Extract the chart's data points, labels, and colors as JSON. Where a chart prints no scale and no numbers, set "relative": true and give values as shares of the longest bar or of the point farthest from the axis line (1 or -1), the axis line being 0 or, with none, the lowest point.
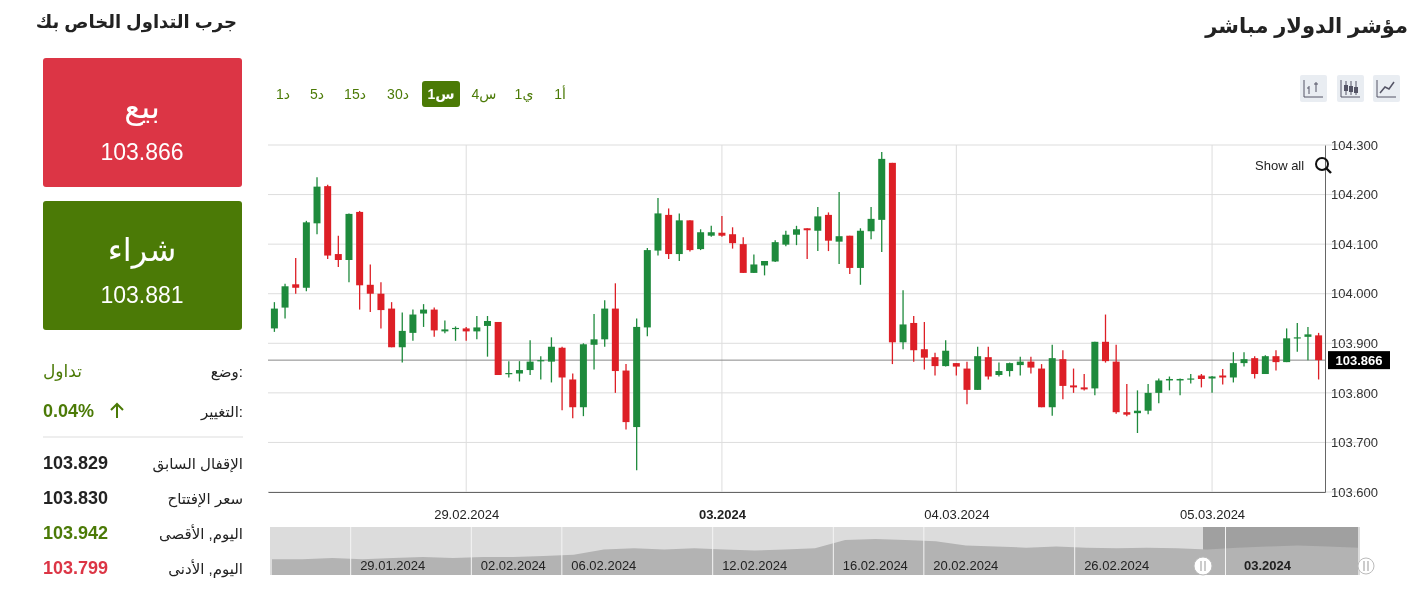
{
  "chart_data": [
    {
      "type": "candlestick",
      "title": "مؤشر الدولار مباشر",
      "categories": [
        null,
        null,
        null,
        null,
        null,
        null,
        null,
        null,
        null,
        null,
        null,
        null,
        null,
        null,
        null,
        null,
        null,
        null,
        "29.02.2024",
        null,
        null,
        null,
        null,
        null,
        null,
        null,
        null,
        null,
        null,
        null,
        null,
        null,
        null,
        null,
        null,
        null,
        null,
        null,
        null,
        null,
        null,
        null,
        "03.2024",
        null,
        null,
        null,
        null,
        null,
        null,
        null,
        null,
        null,
        null,
        null,
        null,
        null,
        null,
        null,
        null,
        null,
        null,
        null,
        null,
        null,
        "04.03.2024",
        null,
        null,
        null,
        null,
        null,
        null,
        null,
        null,
        null,
        null,
        null,
        null,
        null,
        null,
        null,
        null,
        null,
        null,
        null,
        null,
        null,
        null,
        null,
        "05.03.2024",
        null,
        null,
        null,
        null,
        null,
        null,
        null,
        null,
        null,
        null
      ],
      "ohlc": [
        [
          103.93,
          103.983,
          103.923,
          103.97
        ],
        [
          103.972,
          104.02,
          103.95,
          104.015
        ],
        [
          104.019,
          104.072,
          104.0,
          104.012
        ],
        [
          104.012,
          104.147,
          104.005,
          104.144
        ],
        [
          104.142,
          104.235,
          104.12,
          104.216
        ],
        [
          104.217,
          104.22,
          104.07,
          104.077
        ],
        [
          104.08,
          104.117,
          104.054,
          104.068
        ],
        [
          104.068,
          104.162,
          104.023,
          104.161
        ],
        [
          104.165,
          104.167,
          103.968,
          104.017
        ],
        [
          104.018,
          104.059,
          103.963,
          104.0
        ],
        [
          104.0,
          104.023,
          103.93,
          103.967
        ],
        [
          103.97,
          103.983,
          103.892,
          103.892
        ],
        [
          103.892,
          103.962,
          103.861,
          103.925
        ],
        [
          103.921,
          103.968,
          103.905,
          103.958
        ],
        [
          103.96,
          103.979,
          103.933,
          103.968
        ],
        [
          103.968,
          103.972,
          103.913,
          103.926
        ],
        [
          103.924,
          103.946,
          103.92,
          103.928
        ],
        [
          103.93,
          103.934,
          103.905,
          103.931
        ],
        [
          103.93,
          103.933,
          103.905,
          103.924
        ],
        [
          103.924,
          103.955,
          103.908,
          103.932
        ],
        [
          103.935,
          103.955,
          103.873,
          103.945
        ],
        [
          103.943,
          103.943,
          103.836,
          103.836
        ],
        [
          103.84,
          103.864,
          103.831,
          103.84
        ],
        [
          103.839,
          103.864,
          103.823,
          103.846
        ],
        [
          103.846,
          103.906,
          103.836,
          103.863
        ],
        [
          103.864,
          103.874,
          103.827,
          103.866
        ],
        [
          103.863,
          103.912,
          103.821,
          103.893
        ],
        [
          103.891,
          103.893,
          103.765,
          103.831
        ],
        [
          103.827,
          103.839,
          103.749,
          103.771
        ],
        [
          103.771,
          103.9,
          103.753,
          103.898
        ],
        [
          103.897,
          103.959,
          103.847,
          103.908
        ],
        [
          103.908,
          103.987,
          103.893,
          103.97
        ],
        [
          103.97,
          104.021,
          103.8,
          103.844
        ],
        [
          103.845,
          103.858,
          103.726,
          103.741
        ],
        [
          103.731,
          103.95,
          103.644,
          103.933
        ],
        [
          103.932,
          104.092,
          103.914,
          104.088
        ],
        [
          104.087,
          104.193,
          104.077,
          104.162
        ],
        [
          104.159,
          104.172,
          104.07,
          104.08
        ],
        [
          104.08,
          104.162,
          104.066,
          104.148
        ],
        [
          104.148,
          104.148,
          104.085,
          104.088
        ],
        [
          104.09,
          104.13,
          104.088,
          104.124
        ],
        [
          104.117,
          104.137,
          104.115,
          104.124
        ],
        [
          104.123,
          104.157,
          104.115,
          104.117
        ],
        [
          104.12,
          104.134,
          104.091,
          104.102
        ],
        [
          104.1,
          104.114,
          104.042,
          104.042
        ],
        [
          104.042,
          104.079,
          104.042,
          104.059
        ],
        [
          104.057,
          104.066,
          104.037,
          104.066
        ],
        [
          104.065,
          104.108,
          104.064,
          104.104
        ],
        [
          104.099,
          104.127,
          104.096,
          104.119
        ],
        [
          104.119,
          104.137,
          104.098,
          104.13
        ],
        [
          104.132,
          104.132,
          104.07,
          104.128
        ],
        [
          104.127,
          104.175,
          104.086,
          104.156
        ],
        [
          104.159,
          104.164,
          104.086,
          104.107
        ],
        [
          104.105,
          104.205,
          104.06,
          104.116
        ],
        [
          104.117,
          104.117,
          104.04,
          104.052
        ],
        [
          104.052,
          104.132,
          104.018,
          104.127
        ],
        [
          104.126,
          104.175,
          104.11,
          104.151
        ],
        [
          104.149,
          104.286,
          104.084,
          104.272
        ],
        [
          104.264,
          104.264,
          103.858,
          103.902
        ],
        [
          103.902,
          104.007,
          103.888,
          103.938
        ],
        [
          103.941,
          103.955,
          103.863,
          103.886
        ],
        [
          103.888,
          103.943,
          103.847,
          103.871
        ],
        [
          103.872,
          103.881,
          103.835,
          103.854
        ],
        [
          103.854,
          103.906,
          103.853,
          103.885
        ],
        [
          103.86,
          103.86,
          103.835,
          103.853
        ],
        [
          103.849,
          103.863,
          103.777,
          103.806
        ],
        [
          103.806,
          103.893,
          103.806,
          103.874
        ],
        [
          103.872,
          103.893,
          103.827,
          103.833
        ],
        [
          103.836,
          103.861,
          103.833,
          103.844
        ],
        [
          103.844,
          103.861,
          103.833,
          103.86
        ],
        [
          103.856,
          103.873,
          103.835,
          103.863
        ],
        [
          103.863,
          103.873,
          103.839,
          103.851
        ],
        [
          103.849,
          103.858,
          103.771,
          103.771
        ],
        [
          103.771,
          103.897,
          103.754,
          103.87
        ],
        [
          103.868,
          103.886,
          103.787,
          103.814
        ],
        [
          103.815,
          103.849,
          103.8,
          103.811
        ],
        [
          103.811,
          103.838,
          103.805,
          103.807
        ],
        [
          103.809,
          103.903,
          103.795,
          103.903
        ],
        [
          103.903,
          103.958,
          103.861,
          103.864
        ],
        [
          103.863,
          103.897,
          103.758,
          103.761
        ],
        [
          103.761,
          103.818,
          103.753,
          103.756
        ],
        [
          103.759,
          103.805,
          103.719,
          103.764
        ],
        [
          103.764,
          103.818,
          103.757,
          103.8
        ],
        [
          103.8,
          103.829,
          103.779,
          103.825
        ],
        [
          103.825,
          103.833,
          103.805,
          103.828
        ],
        [
          103.825,
          103.829,
          103.795,
          103.828
        ],
        [
          103.828,
          103.838,
          103.819,
          103.829
        ],
        [
          103.835,
          103.838,
          103.811,
          103.828
        ],
        [
          103.829,
          103.834,
          103.8,
          103.833
        ],
        [
          103.835,
          103.848,
          103.817,
          103.831
        ],
        [
          103.831,
          103.882,
          103.821,
          103.86
        ],
        [
          103.86,
          103.882,
          103.853,
          103.868
        ],
        [
          103.87,
          103.874,
          103.829,
          103.838
        ],
        [
          103.838,
          103.876,
          103.838,
          103.874
        ],
        [
          103.874,
          103.886,
          103.845,
          103.862
        ],
        [
          103.862,
          103.93,
          103.862,
          103.91
        ],
        [
          103.911,
          103.941,
          103.883,
          103.912
        ],
        [
          103.913,
          103.933,
          103.866,
          103.918
        ],
        [
          103.916,
          103.921,
          103.827,
          103.866
        ]
      ],
      "colors": [
        "#1e8a3c",
        "#1e8a3c",
        "#dd1f26",
        "#1e8a3c",
        "#1e8a3c",
        "#dd1f26",
        "#dd1f26",
        "#1e8a3c",
        "#dd1f26",
        "#dd1f26",
        "#dd1f26",
        "#dd1f26",
        "#1e8a3c",
        "#1e8a3c",
        "#1e8a3c",
        "#dd1f26",
        "#1e8a3c",
        "#1e8a3c",
        "#dd1f26",
        "#1e8a3c",
        "#1e8a3c",
        "#dd1f26",
        "#1e8a3c",
        "#1e8a3c",
        "#1e8a3c",
        "#1e8a3c",
        "#1e8a3c",
        "#dd1f26",
        "#dd1f26",
        "#1e8a3c",
        "#1e8a3c",
        "#1e8a3c",
        "#dd1f26",
        "#dd1f26",
        "#1e8a3c",
        "#1e8a3c",
        "#1e8a3c",
        "#dd1f26",
        "#1e8a3c",
        "#dd1f26",
        "#1e8a3c",
        "#1e8a3c",
        "#dd1f26",
        "#dd1f26",
        "#dd1f26",
        "#1e8a3c",
        "#1e8a3c",
        "#1e8a3c",
        "#1e8a3c",
        "#1e8a3c",
        "#dd1f26",
        "#1e8a3c",
        "#dd1f26",
        "#1e8a3c",
        "#dd1f26",
        "#1e8a3c",
        "#1e8a3c",
        "#1e8a3c",
        "#dd1f26",
        "#1e8a3c",
        "#dd1f26",
        "#dd1f26",
        "#dd1f26",
        "#1e8a3c",
        "#dd1f26",
        "#dd1f26",
        "#1e8a3c",
        "#dd1f26",
        "#1e8a3c",
        "#1e8a3c",
        "#1e8a3c",
        "#dd1f26",
        "#dd1f26",
        "#1e8a3c",
        "#dd1f26",
        "#dd1f26",
        "#dd1f26",
        "#1e8a3c",
        "#dd1f26",
        "#dd1f26",
        "#dd1f26",
        "#1e8a3c",
        "#1e8a3c",
        "#1e8a3c",
        "#1e8a3c",
        "#1e8a3c",
        "#1e8a3c",
        "#dd1f26",
        "#1e8a3c",
        "#dd1f26",
        "#1e8a3c",
        "#1e8a3c",
        "#dd1f26",
        "#1e8a3c",
        "#dd1f26",
        "#1e8a3c",
        "#1e8a3c",
        "#1e8a3c",
        "#dd1f26"
      ],
      "ylim": [
        103.6,
        104.3
      ],
      "yticks": [
        {
          "value": 103.6,
          "label": "103.600"
        },
        {
          "value": 103.7,
          "label": "103.700"
        },
        {
          "value": 103.8,
          "label": "103.800"
        },
        {
          "value": 103.9,
          "label": "103.900"
        },
        {
          "value": 104.0,
          "label": "104.000"
        },
        {
          "value": 104.1,
          "label": "104.100"
        },
        {
          "value": 104.2,
          "label": "104.200"
        },
        {
          "value": 104.3,
          "label": "104.300"
        }
      ],
      "grid": true,
      "ref_lines": [
        {
          "axis": "y",
          "value": 103.866,
          "label": "103.866",
          "color": "#888888"
        }
      ],
      "annotations": [
        "1د",
        "5د",
        "15د",
        "30د",
        "1س",
        "4س",
        "1ي",
        "1أ",
        "Show all"
      ]
    },
    {
      "type": "area",
      "relative": true,
      "color": "#b3b3b3",
      "grid": "x",
      "categories": [
        null,
        null,
        null,
        null,
        "29.01.2024",
        null,
        null,
        null,
        "02.02.2024",
        null,
        null,
        "06.02.2024",
        null,
        null,
        null,
        null,
        "12.02.2024",
        null,
        null,
        null,
        "16.02.2024",
        null,
        null,
        "20.02.2024",
        null,
        null,
        null,
        null,
        "26.02.2024",
        null,
        null,
        null,
        null,
        "03.2024",
        null,
        null,
        null
      ],
      "values": [
        0.44,
        0.44,
        0.47,
        0.44,
        0.47,
        0.5,
        0.47,
        0.5,
        0.5,
        0.53,
        0.56,
        0.71,
        0.74,
        0.71,
        0.74,
        0.71,
        0.68,
        0.71,
        0.74,
        0.97,
        1,
        0.97,
        0.94,
        0.82,
        0.79,
        0.76,
        0.79,
        0.76,
        0.74,
        0.76,
        0.74,
        0.71,
        0.76,
        0.79,
        0.82,
        0.79,
        0.76
      ]
    },
    {
      "type": "other",
      "title": "جرب التداول الخاص بك",
      "annotations": [
        "بيع",
        "103.866",
        "شراء",
        "103.881",
        "وضع:",
        "تداول",
        "التغيير:",
        "0.04%",
        "الإقفال السابق",
        "103.829",
        "سعر الإفتتاح",
        "103.830",
        "اليوم, الأقصى",
        "103.942",
        "اليوم, الأدنى",
        "103.799"
      ]
    }
  ]
}
